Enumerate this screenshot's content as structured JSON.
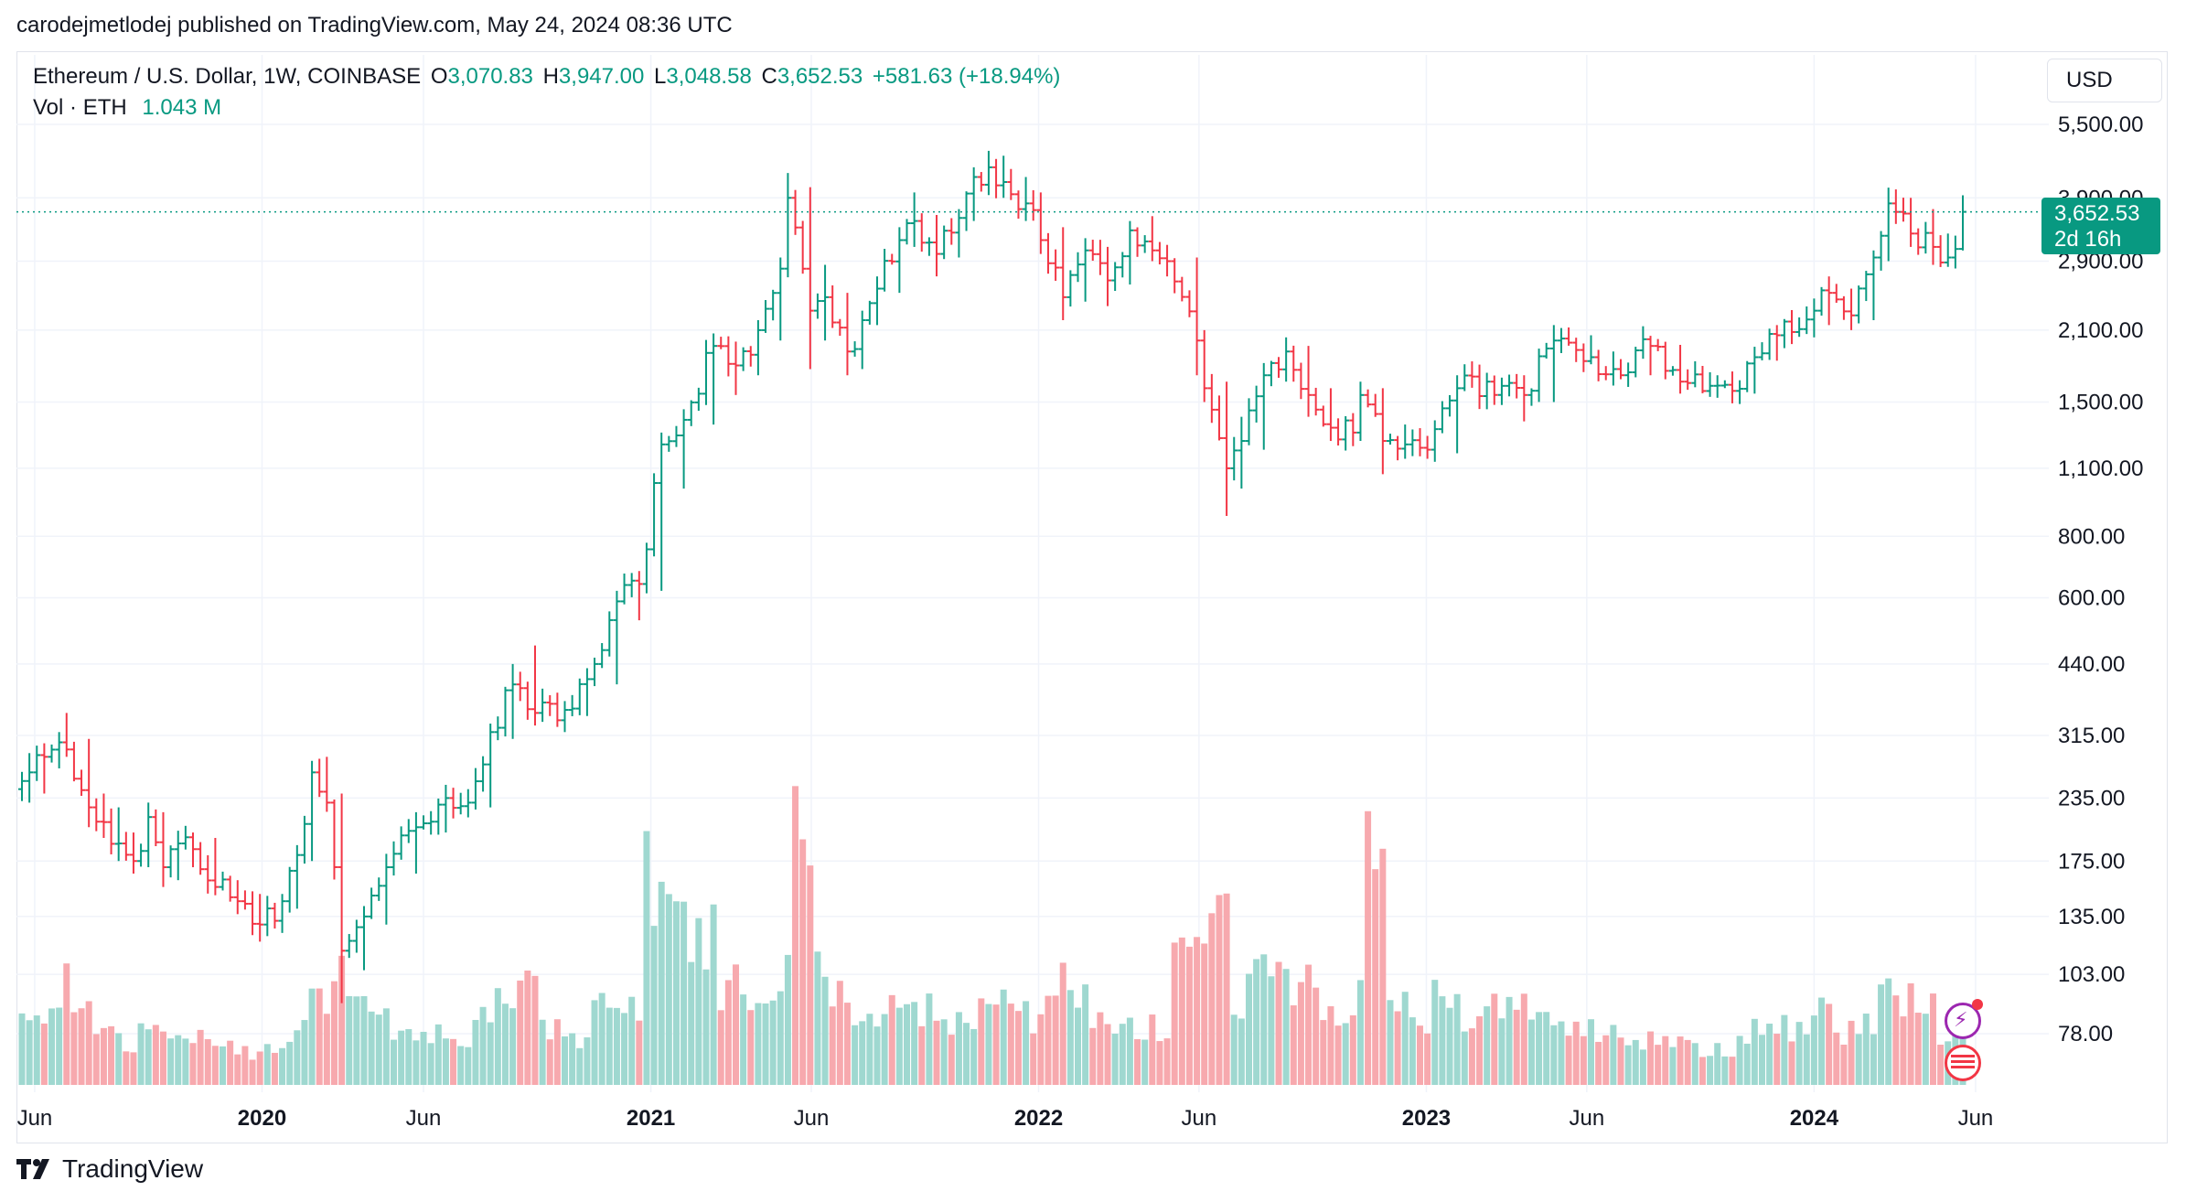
{
  "header": {
    "published": "carodejmetlodej published on TradingView.com, May 24, 2024 08:36 UTC"
  },
  "legend": {
    "symbol": "Ethereum / U.S. Dollar, 1W, COINBASE",
    "o_label": "O",
    "o_value": "3,070.83",
    "h_label": "H",
    "h_value": "3,947.00",
    "l_label": "L",
    "l_value": "3,048.58",
    "c_label": "C",
    "c_value": "3,652.53",
    "change": "+581.63 (+18.94%)",
    "vol_label": "Vol · ETH",
    "vol_value": "1.043 M"
  },
  "currency_button": "USD",
  "last_price": {
    "price": "3,652.53",
    "countdown": "2d 16h"
  },
  "footer": {
    "brand": "TradingView"
  },
  "colors": {
    "up": "#089981",
    "down": "#f23645",
    "up_volume": "#9fd8d0",
    "down_volume": "#f7a9ae",
    "grid": "#f0f3fa"
  },
  "icons": [
    "tradingview-logo-icon",
    "lightning-icon",
    "us-flag-icon"
  ],
  "chart_data": {
    "type": "candlestick",
    "interval": "1W",
    "y_scale": "log",
    "y_ticks": [
      78,
      103,
      135,
      175,
      235,
      315,
      440,
      600,
      800,
      1100,
      1500,
      2100,
      2900,
      3900,
      5500
    ],
    "y_tick_labels": [
      "78.00",
      "103.00",
      "135.00",
      "175.00",
      "235.00",
      "315.00",
      "440.00",
      "600.00",
      "800.00",
      "1,100.00",
      "1,500.00",
      "2,100.00",
      "2,900.00",
      "3,900.00",
      "5,500.00"
    ],
    "x_ticks": [
      {
        "date": "2019-06-01",
        "label": "Jun",
        "bold": false
      },
      {
        "date": "2020-01-01",
        "label": "2020",
        "bold": true
      },
      {
        "date": "2020-06-01",
        "label": "Jun",
        "bold": false
      },
      {
        "date": "2021-01-01",
        "label": "2021",
        "bold": true
      },
      {
        "date": "2021-06-01",
        "label": "Jun",
        "bold": false
      },
      {
        "date": "2022-01-01",
        "label": "2022",
        "bold": true
      },
      {
        "date": "2022-06-01",
        "label": "Jun",
        "bold": false
      },
      {
        "date": "2023-01-01",
        "label": "2023",
        "bold": true
      },
      {
        "date": "2023-06-01",
        "label": "Jun",
        "bold": false
      },
      {
        "date": "2024-01-01",
        "label": "2024",
        "bold": true
      },
      {
        "date": "2024-06-01",
        "label": "Jun",
        "bold": false
      }
    ],
    "last_close": 3652.53,
    "candles": [
      {
        "d": "2019-05-20",
        "o": 245,
        "h": 290,
        "l": 230,
        "c": 265,
        "v": 40
      },
      {
        "d": "2019-06-03",
        "o": 265,
        "h": 300,
        "l": 240,
        "c": 285,
        "v": 38
      },
      {
        "d": "2019-06-17",
        "o": 285,
        "h": 320,
        "l": 270,
        "c": 305,
        "v": 45
      },
      {
        "d": "2019-07-01",
        "o": 305,
        "h": 350,
        "l": 285,
        "c": 295,
        "v": 48
      },
      {
        "d": "2019-07-08",
        "o": 295,
        "h": 310,
        "l": 205,
        "c": 225,
        "v": 42
      },
      {
        "d": "2019-07-29",
        "o": 225,
        "h": 240,
        "l": 195,
        "c": 210,
        "v": 30
      },
      {
        "d": "2019-08-12",
        "o": 210,
        "h": 225,
        "l": 175,
        "c": 190,
        "v": 24
      },
      {
        "d": "2019-08-26",
        "o": 190,
        "h": 200,
        "l": 165,
        "c": 175,
        "v": 20
      },
      {
        "d": "2019-09-09",
        "o": 175,
        "h": 230,
        "l": 170,
        "c": 215,
        "v": 28
      },
      {
        "d": "2019-09-23",
        "o": 215,
        "h": 220,
        "l": 155,
        "c": 170,
        "v": 30
      },
      {
        "d": "2019-10-07",
        "o": 170,
        "h": 200,
        "l": 160,
        "c": 190,
        "v": 20
      },
      {
        "d": "2019-10-21",
        "o": 190,
        "h": 200,
        "l": 170,
        "c": 185,
        "v": 22
      },
      {
        "d": "2019-11-04",
        "o": 185,
        "h": 195,
        "l": 150,
        "c": 155,
        "v": 24
      },
      {
        "d": "2019-11-25",
        "o": 155,
        "h": 160,
        "l": 140,
        "c": 145,
        "v": 18
      },
      {
        "d": "2019-12-16",
        "o": 145,
        "h": 150,
        "l": 120,
        "c": 130,
        "v": 16
      },
      {
        "d": "2020-01-06",
        "o": 130,
        "h": 150,
        "l": 125,
        "c": 145,
        "v": 20
      },
      {
        "d": "2020-01-27",
        "o": 145,
        "h": 185,
        "l": 140,
        "c": 180,
        "v": 28
      },
      {
        "d": "2020-02-10",
        "o": 180,
        "h": 270,
        "l": 175,
        "c": 265,
        "v": 42
      },
      {
        "d": "2020-02-24",
        "o": 265,
        "h": 285,
        "l": 225,
        "c": 230,
        "v": 44
      },
      {
        "d": "2020-03-09",
        "o": 230,
        "h": 240,
        "l": 90,
        "c": 115,
        "v": 60
      },
      {
        "d": "2020-03-23",
        "o": 115,
        "h": 140,
        "l": 105,
        "c": 135,
        "v": 36
      },
      {
        "d": "2020-04-13",
        "o": 135,
        "h": 175,
        "l": 130,
        "c": 170,
        "v": 30
      },
      {
        "d": "2020-05-04",
        "o": 170,
        "h": 220,
        "l": 165,
        "c": 205,
        "v": 28
      },
      {
        "d": "2020-06-01",
        "o": 205,
        "h": 250,
        "l": 200,
        "c": 235,
        "v": 24
      },
      {
        "d": "2020-06-29",
        "o": 235,
        "h": 245,
        "l": 220,
        "c": 230,
        "v": 20
      },
      {
        "d": "2020-07-20",
        "o": 230,
        "h": 330,
        "l": 225,
        "c": 320,
        "v": 40
      },
      {
        "d": "2020-08-10",
        "o": 320,
        "h": 440,
        "l": 310,
        "c": 400,
        "v": 46
      },
      {
        "d": "2020-08-31",
        "o": 400,
        "h": 480,
        "l": 330,
        "c": 350,
        "v": 50
      },
      {
        "d": "2020-09-21",
        "o": 350,
        "h": 370,
        "l": 320,
        "c": 355,
        "v": 26
      },
      {
        "d": "2020-10-19",
        "o": 355,
        "h": 420,
        "l": 345,
        "c": 410,
        "v": 22
      },
      {
        "d": "2020-11-09",
        "o": 410,
        "h": 620,
        "l": 400,
        "c": 590,
        "v": 40
      },
      {
        "d": "2020-12-07",
        "o": 590,
        "h": 680,
        "l": 540,
        "c": 640,
        "v": 36
      },
      {
        "d": "2020-12-28",
        "o": 640,
        "h": 1300,
        "l": 620,
        "c": 1230,
        "v": 100
      },
      {
        "d": "2021-01-18",
        "o": 1230,
        "h": 1450,
        "l": 1000,
        "c": 1380,
        "v": 90
      },
      {
        "d": "2021-02-08",
        "o": 1380,
        "h": 2050,
        "l": 1350,
        "c": 1950,
        "v": 75
      },
      {
        "d": "2021-03-08",
        "o": 1950,
        "h": 1990,
        "l": 1550,
        "c": 1780,
        "v": 48
      },
      {
        "d": "2021-03-29",
        "o": 1780,
        "h": 2200,
        "l": 1700,
        "c": 2100,
        "v": 40
      },
      {
        "d": "2021-04-19",
        "o": 2100,
        "h": 2950,
        "l": 2000,
        "c": 2800,
        "v": 50
      },
      {
        "d": "2021-05-10",
        "o": 2800,
        "h": 4380,
        "l": 2700,
        "c": 3900,
        "v": 70
      },
      {
        "d": "2021-05-17",
        "o": 3900,
        "h": 4100,
        "l": 1750,
        "c": 2300,
        "v": 122
      },
      {
        "d": "2021-06-07",
        "o": 2300,
        "h": 2850,
        "l": 2000,
        "c": 2450,
        "v": 55
      },
      {
        "d": "2021-06-21",
        "o": 2450,
        "h": 2500,
        "l": 1700,
        "c": 1900,
        "v": 45
      },
      {
        "d": "2021-07-12",
        "o": 1900,
        "h": 2300,
        "l": 1750,
        "c": 2200,
        "v": 32
      },
      {
        "d": "2021-07-26",
        "o": 2200,
        "h": 2700,
        "l": 2150,
        "c": 2550,
        "v": 36
      },
      {
        "d": "2021-08-09",
        "o": 2550,
        "h": 3300,
        "l": 2500,
        "c": 3200,
        "v": 40
      },
      {
        "d": "2021-08-30",
        "o": 3200,
        "h": 4000,
        "l": 3100,
        "c": 3500,
        "v": 38
      },
      {
        "d": "2021-09-13",
        "o": 3500,
        "h": 3600,
        "l": 2700,
        "c": 3000,
        "v": 36
      },
      {
        "d": "2021-10-04",
        "o": 3000,
        "h": 3700,
        "l": 2950,
        "c": 3550,
        "v": 30
      },
      {
        "d": "2021-10-25",
        "o": 3550,
        "h": 4500,
        "l": 3500,
        "c": 4300,
        "v": 36
      },
      {
        "d": "2021-11-08",
        "o": 4300,
        "h": 4860,
        "l": 4100,
        "c": 4500,
        "v": 40
      },
      {
        "d": "2021-11-22",
        "o": 4500,
        "h": 4750,
        "l": 3900,
        "c": 4200,
        "v": 38
      },
      {
        "d": "2021-12-06",
        "o": 4200,
        "h": 4300,
        "l": 3500,
        "c": 3800,
        "v": 36
      },
      {
        "d": "2021-12-27",
        "o": 3800,
        "h": 4000,
        "l": 3000,
        "c": 3200,
        "v": 30
      },
      {
        "d": "2022-01-10",
        "o": 3200,
        "h": 3400,
        "l": 2200,
        "c": 2450,
        "v": 48
      },
      {
        "d": "2022-01-31",
        "o": 2450,
        "h": 3200,
        "l": 2400,
        "c": 3050,
        "v": 42
      },
      {
        "d": "2022-02-21",
        "o": 3050,
        "h": 3100,
        "l": 2350,
        "c": 2650,
        "v": 36
      },
      {
        "d": "2022-03-14",
        "o": 2650,
        "h": 3500,
        "l": 2600,
        "c": 3350,
        "v": 30
      },
      {
        "d": "2022-04-04",
        "o": 3350,
        "h": 3580,
        "l": 2900,
        "c": 3050,
        "v": 28
      },
      {
        "d": "2022-04-25",
        "o": 3050,
        "h": 3100,
        "l": 2700,
        "c": 2900,
        "v": 26
      },
      {
        "d": "2022-05-09",
        "o": 2900,
        "h": 2950,
        "l": 1700,
        "c": 2000,
        "v": 65
      },
      {
        "d": "2022-06-06",
        "o": 2000,
        "h": 2100,
        "l": 1500,
        "c": 1600,
        "v": 62
      },
      {
        "d": "2022-06-13",
        "o": 1600,
        "h": 1650,
        "l": 880,
        "c": 1100,
        "v": 105
      },
      {
        "d": "2022-07-04",
        "o": 1100,
        "h": 1400,
        "l": 1000,
        "c": 1250,
        "v": 40
      },
      {
        "d": "2022-07-18",
        "o": 1250,
        "h": 1800,
        "l": 1200,
        "c": 1700,
        "v": 55
      },
      {
        "d": "2022-08-08",
        "o": 1700,
        "h": 2030,
        "l": 1650,
        "c": 1900,
        "v": 50
      },
      {
        "d": "2022-08-29",
        "o": 1900,
        "h": 1950,
        "l": 1400,
        "c": 1550,
        "v": 48
      },
      {
        "d": "2022-09-19",
        "o": 1550,
        "h": 1600,
        "l": 1250,
        "c": 1330,
        "v": 40
      },
      {
        "d": "2022-10-10",
        "o": 1330,
        "h": 1400,
        "l": 1220,
        "c": 1300,
        "v": 30
      },
      {
        "d": "2022-10-31",
        "o": 1300,
        "h": 1650,
        "l": 1250,
        "c": 1550,
        "v": 64
      },
      {
        "d": "2022-11-07",
        "o": 1550,
        "h": 1600,
        "l": 1070,
        "c": 1250,
        "v": 125
      },
      {
        "d": "2022-11-28",
        "o": 1250,
        "h": 1350,
        "l": 1150,
        "c": 1230,
        "v": 40
      },
      {
        "d": "2022-12-19",
        "o": 1230,
        "h": 1280,
        "l": 1150,
        "c": 1200,
        "v": 28
      },
      {
        "d": "2023-01-09",
        "o": 1200,
        "h": 1700,
        "l": 1180,
        "c": 1600,
        "v": 45
      },
      {
        "d": "2023-02-06",
        "o": 1600,
        "h": 1720,
        "l": 1450,
        "c": 1650,
        "v": 34
      },
      {
        "d": "2023-03-06",
        "o": 1650,
        "h": 1700,
        "l": 1370,
        "c": 1550,
        "v": 42
      },
      {
        "d": "2023-04-10",
        "o": 1550,
        "h": 2150,
        "l": 1500,
        "c": 2000,
        "v": 36
      },
      {
        "d": "2023-05-08",
        "o": 2000,
        "h": 2050,
        "l": 1800,
        "c": 1850,
        "v": 26
      },
      {
        "d": "2023-06-12",
        "o": 1850,
        "h": 1900,
        "l": 1620,
        "c": 1750,
        "v": 24
      },
      {
        "d": "2023-07-03",
        "o": 1750,
        "h": 2030,
        "l": 1700,
        "c": 1950,
        "v": 22
      },
      {
        "d": "2023-08-07",
        "o": 1950,
        "h": 1960,
        "l": 1560,
        "c": 1650,
        "v": 20
      },
      {
        "d": "2023-09-04",
        "o": 1650,
        "h": 1700,
        "l": 1530,
        "c": 1620,
        "v": 18
      },
      {
        "d": "2023-10-09",
        "o": 1620,
        "h": 1650,
        "l": 1520,
        "c": 1580,
        "v": 16
      },
      {
        "d": "2023-10-23",
        "o": 1580,
        "h": 1900,
        "l": 1560,
        "c": 1850,
        "v": 26
      },
      {
        "d": "2023-11-13",
        "o": 1850,
        "h": 2150,
        "l": 1820,
        "c": 2050,
        "v": 24
      },
      {
        "d": "2023-12-04",
        "o": 2050,
        "h": 2400,
        "l": 2030,
        "c": 2300,
        "v": 28
      },
      {
        "d": "2024-01-08",
        "o": 2300,
        "h": 2700,
        "l": 2150,
        "c": 2500,
        "v": 38
      },
      {
        "d": "2024-01-22",
        "o": 2500,
        "h": 2550,
        "l": 2100,
        "c": 2250,
        "v": 26
      },
      {
        "d": "2024-02-12",
        "o": 2250,
        "h": 3050,
        "l": 2200,
        "c": 2950,
        "v": 30
      },
      {
        "d": "2024-03-04",
        "o": 2950,
        "h": 4090,
        "l": 2900,
        "c": 3800,
        "v": 45
      },
      {
        "d": "2024-03-18",
        "o": 3800,
        "h": 3900,
        "l": 3100,
        "c": 3300,
        "v": 44
      },
      {
        "d": "2024-04-08",
        "o": 3300,
        "h": 3700,
        "l": 2850,
        "c": 3100,
        "v": 40
      },
      {
        "d": "2024-04-29",
        "o": 3100,
        "h": 3300,
        "l": 2850,
        "c": 2950,
        "v": 24
      },
      {
        "d": "2024-05-13",
        "o": 2950,
        "h": 3200,
        "l": 2870,
        "c": 3070,
        "v": 22
      },
      {
        "d": "2024-05-20",
        "o": 3070.83,
        "h": 3947,
        "l": 3048.58,
        "c": 3652.53,
        "v": 30
      }
    ]
  }
}
